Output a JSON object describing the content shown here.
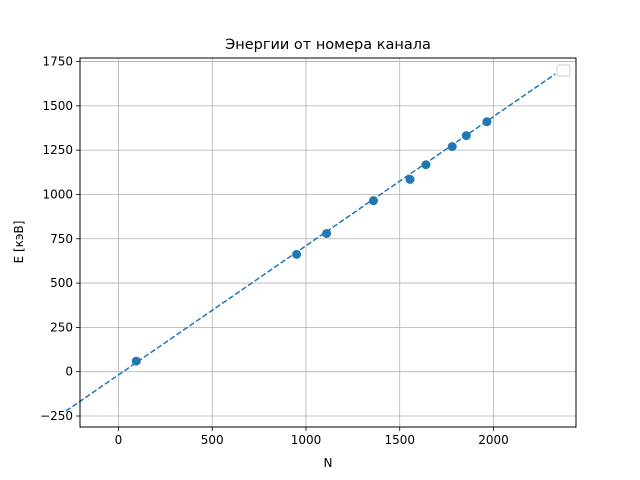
{
  "chart_data": {
    "type": "scatter",
    "title": "Энергии от номера канала",
    "xlabel": "N",
    "ylabel": "E [кэВ]",
    "xlim": [
      -205,
      2440
    ],
    "ylim": [
      -312,
      1770
    ],
    "xticks": [
      0,
      500,
      1000,
      1500,
      2000
    ],
    "yticks": [
      -250,
      0,
      250,
      500,
      750,
      1000,
      1250,
      1500,
      1750
    ],
    "xtick_labels": [
      "0",
      "500",
      "1000",
      "1500",
      "2000"
    ],
    "ytick_labels": [
      "−250",
      "0",
      "250",
      "500",
      "750",
      "1000",
      "1250",
      "1500",
      "1750"
    ],
    "grid": true,
    "legend": "top-right, empty",
    "points": {
      "x": [
        95,
        950,
        1110,
        1360,
        1555,
        1640,
        1780,
        1855,
        1965
      ],
      "y": [
        60,
        662,
        780,
        965,
        1085,
        1168,
        1270,
        1332,
        1410
      ]
    },
    "fit_line": {
      "style": "dashed",
      "x": [
        -280,
        2330
      ],
      "y": [
        -222,
        1680
      ]
    },
    "color": "#1f77b4"
  }
}
